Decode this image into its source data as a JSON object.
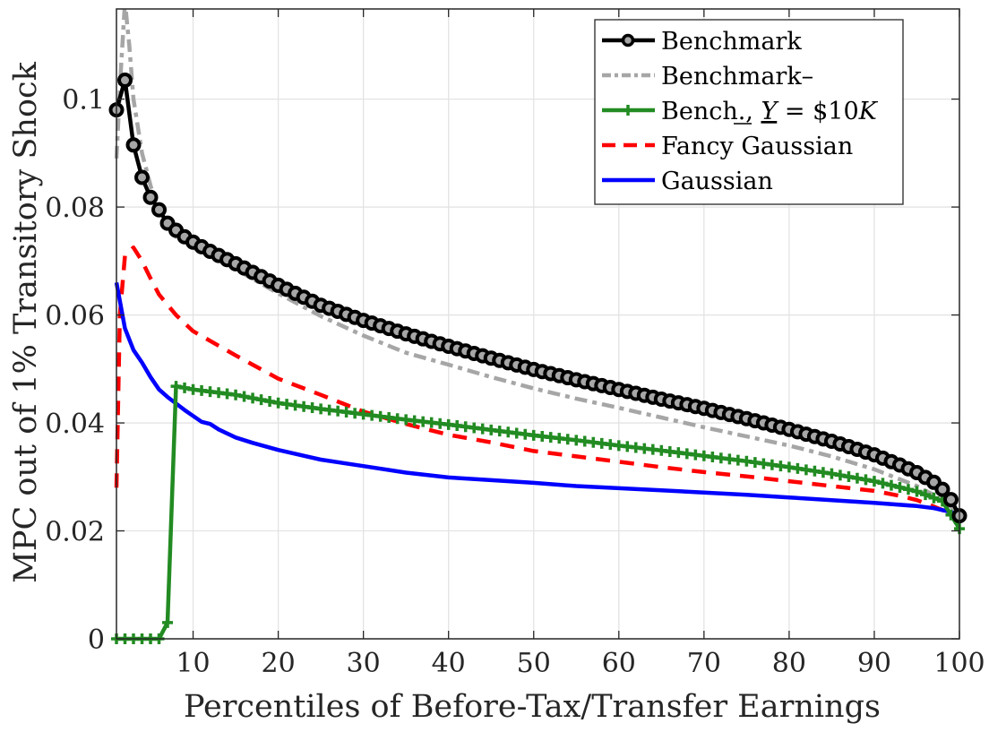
{
  "chart_data": {
    "type": "line",
    "title": "",
    "xlabel": "Percentiles of Before-Tax/Transfer Earnings",
    "ylabel": "MPC out of 1% Transitory Shock",
    "xlim": [
      1,
      100
    ],
    "ylim": [
      0,
      0.1167
    ],
    "grid": true,
    "legend_position": "upper right",
    "x_ticks": [
      10,
      20,
      30,
      40,
      50,
      60,
      70,
      80,
      90,
      100
    ],
    "x_tick_labels": [
      "10",
      "20",
      "30",
      "40",
      "50",
      "60",
      "70",
      "80",
      "90",
      "100"
    ],
    "y_ticks": [
      0,
      0.02,
      0.04,
      0.06,
      0.08,
      0.1
    ],
    "y_tick_labels": [
      "0",
      "0.02",
      "0.04",
      "0.06",
      "0.08",
      "0.1"
    ],
    "series": [
      {
        "name": "Benchmark",
        "color": "#000000",
        "style": "solid-circle-markers",
        "x": [
          1,
          2,
          3,
          4,
          5,
          6,
          7,
          8,
          9,
          10,
          12,
          15,
          20,
          25,
          30,
          35,
          40,
          45,
          50,
          55,
          60,
          65,
          70,
          75,
          80,
          85,
          90,
          93,
          95,
          97,
          98,
          99,
          100
        ],
        "values": [
          0.098,
          0.1035,
          0.0915,
          0.0855,
          0.0818,
          0.0795,
          0.077,
          0.0757,
          0.0745,
          0.0735,
          0.0718,
          0.0695,
          0.0655,
          0.0618,
          0.059,
          0.0565,
          0.0542,
          0.052,
          0.0499,
          0.048,
          0.0462,
          0.0444,
          0.0427,
          0.0408,
          0.0388,
          0.0366,
          0.0341,
          0.0322,
          0.0308,
          0.029,
          0.0277,
          0.0258,
          0.0228
        ]
      },
      {
        "name": "Benchmark–",
        "color": "#a6a6a6",
        "style": "dash-dot",
        "x": [
          1,
          1.5,
          2,
          2.5,
          3,
          4,
          5,
          6,
          7,
          8,
          10,
          12,
          15,
          20,
          25,
          30,
          35,
          40,
          45,
          50,
          55,
          60,
          65,
          70,
          75,
          80,
          85,
          90,
          95,
          98,
          100
        ],
        "values": [
          0.089,
          0.105,
          0.118,
          0.11,
          0.1,
          0.09,
          0.084,
          0.079,
          0.0765,
          0.0745,
          0.0725,
          0.071,
          0.0685,
          0.064,
          0.0598,
          0.0562,
          0.053,
          0.0508,
          0.0485,
          0.0464,
          0.0445,
          0.0428,
          0.041,
          0.0392,
          0.0375,
          0.0358,
          0.0338,
          0.0314,
          0.0283,
          0.0258,
          0.0232
        ]
      },
      {
        "name": "Bench., Y = $10K",
        "color": "#228b22",
        "style": "solid-plus-markers",
        "x": [
          1,
          2,
          3,
          4,
          5,
          6,
          7,
          8,
          10,
          15,
          20,
          25,
          30,
          35,
          40,
          45,
          50,
          55,
          60,
          65,
          70,
          75,
          80,
          85,
          90,
          95,
          98,
          100
        ],
        "values": [
          0,
          0,
          0,
          0,
          0,
          0,
          0.003,
          0.0468,
          0.0462,
          0.0452,
          0.0437,
          0.0426,
          0.0416,
          0.0406,
          0.0397,
          0.0387,
          0.0377,
          0.0368,
          0.0358,
          0.0349,
          0.0339,
          0.0329,
          0.0318,
          0.0306,
          0.0292,
          0.0273,
          0.0255,
          0.0204
        ]
      },
      {
        "name": "Fancy Gaussian",
        "color": "#ff0000",
        "style": "dashed",
        "x": [
          1,
          1.4,
          2,
          3,
          4,
          5,
          6,
          8,
          10,
          15,
          20,
          25,
          30,
          35,
          40,
          45,
          50,
          55,
          60,
          65,
          70,
          75,
          80,
          85,
          90,
          93,
          95,
          97,
          99,
          100
        ],
        "values": [
          0.028,
          0.06,
          0.071,
          0.0725,
          0.07,
          0.0668,
          0.0638,
          0.06,
          0.057,
          0.0525,
          0.0482,
          0.0452,
          0.0421,
          0.0398,
          0.0378,
          0.0364,
          0.0348,
          0.0338,
          0.0328,
          0.0318,
          0.0309,
          0.0301,
          0.0292,
          0.0283,
          0.0274,
          0.0265,
          0.0257,
          0.0245,
          0.0232,
          0.0222
        ]
      },
      {
        "name": "Gaussian",
        "color": "#0000ff",
        "style": "solid",
        "x": [
          1,
          2,
          3,
          4,
          5,
          6,
          7,
          8,
          9,
          10,
          11,
          12,
          13,
          15,
          17,
          20,
          25,
          30,
          35,
          40,
          45,
          50,
          55,
          60,
          65,
          70,
          75,
          80,
          85,
          90,
          95,
          97,
          99,
          100
        ],
        "values": [
          0.066,
          0.0575,
          0.0535,
          0.0512,
          0.0485,
          0.0462,
          0.0448,
          0.0436,
          0.0424,
          0.0413,
          0.0402,
          0.0398,
          0.0388,
          0.0373,
          0.0363,
          0.035,
          0.0332,
          0.032,
          0.0308,
          0.0299,
          0.0294,
          0.0289,
          0.0283,
          0.0279,
          0.0275,
          0.0271,
          0.0267,
          0.0262,
          0.0257,
          0.0252,
          0.0246,
          0.0242,
          0.0235,
          0.0225
        ]
      }
    ]
  },
  "legend": {
    "items": [
      {
        "label": "Benchmark"
      },
      {
        "label": "Benchmark–"
      },
      {
        "label_pre": "Bench., ",
        "label_var": "Y",
        "label_post": " = $10",
        "label_k": "K"
      },
      {
        "label": "Fancy Gaussian"
      },
      {
        "label": "Gaussian"
      }
    ]
  }
}
